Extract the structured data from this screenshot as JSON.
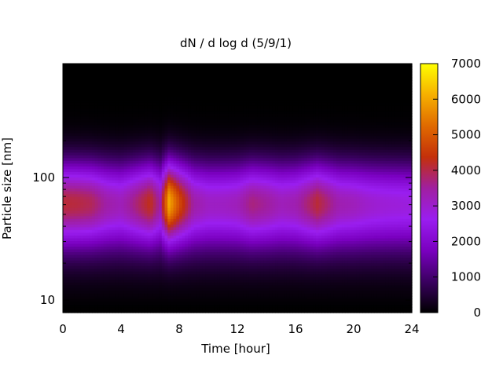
{
  "chart_data": {
    "type": "heatmap",
    "title": "dN / d log d (5/9/1)",
    "xlabel": "Time [hour]",
    "ylabel": "Particle size [nm]",
    "xlim": [
      0,
      24
    ],
    "x_ticks": [
      0,
      4,
      8,
      12,
      16,
      20,
      24
    ],
    "y_scale": "log",
    "ylim_nm": [
      7.9,
      850
    ],
    "y_ticks": [
      10,
      100
    ],
    "colorbar": {
      "min": 0,
      "max": 7000,
      "ticks": [
        0,
        1000,
        2000,
        3000,
        4000,
        5000,
        6000,
        7000
      ],
      "palette": [
        "#000000",
        "#3a0060",
        "#7a00c0",
        "#9a1ef0",
        "#a01fa0",
        "#c4300a",
        "#e06a00",
        "#f6b000",
        "#ffff00"
      ]
    },
    "mode_diameter_nm": 65,
    "peak_value": 5600,
    "peak_time_hour": 7.3,
    "time_profile": [
      {
        "hour": 0,
        "peak": 3700
      },
      {
        "hour": 1,
        "peak": 3650
      },
      {
        "hour": 2,
        "peak": 3500
      },
      {
        "hour": 3,
        "peak": 3000
      },
      {
        "hour": 4,
        "peak": 2800
      },
      {
        "hour": 5,
        "peak": 3300
      },
      {
        "hour": 6,
        "peak": 3900
      },
      {
        "hour": 6.7,
        "peak": 3000
      },
      {
        "hour": 7.3,
        "peak": 5600
      },
      {
        "hour": 8,
        "peak": 4400
      },
      {
        "hour": 9,
        "peak": 3000
      },
      {
        "hour": 10,
        "peak": 2700
      },
      {
        "hour": 11,
        "peak": 2700
      },
      {
        "hour": 12,
        "peak": 2800
      },
      {
        "hour": 13,
        "peak": 3300
      },
      {
        "hour": 14,
        "peak": 3100
      },
      {
        "hour": 15,
        "peak": 2800
      },
      {
        "hour": 16,
        "peak": 2900
      },
      {
        "hour": 17.5,
        "peak": 3700
      },
      {
        "hour": 19,
        "peak": 2900
      },
      {
        "hour": 20,
        "peak": 2800
      },
      {
        "hour": 21,
        "peak": 2600
      },
      {
        "hour": 22,
        "peak": 2500
      },
      {
        "hour": 24,
        "peak": 2400
      }
    ]
  }
}
